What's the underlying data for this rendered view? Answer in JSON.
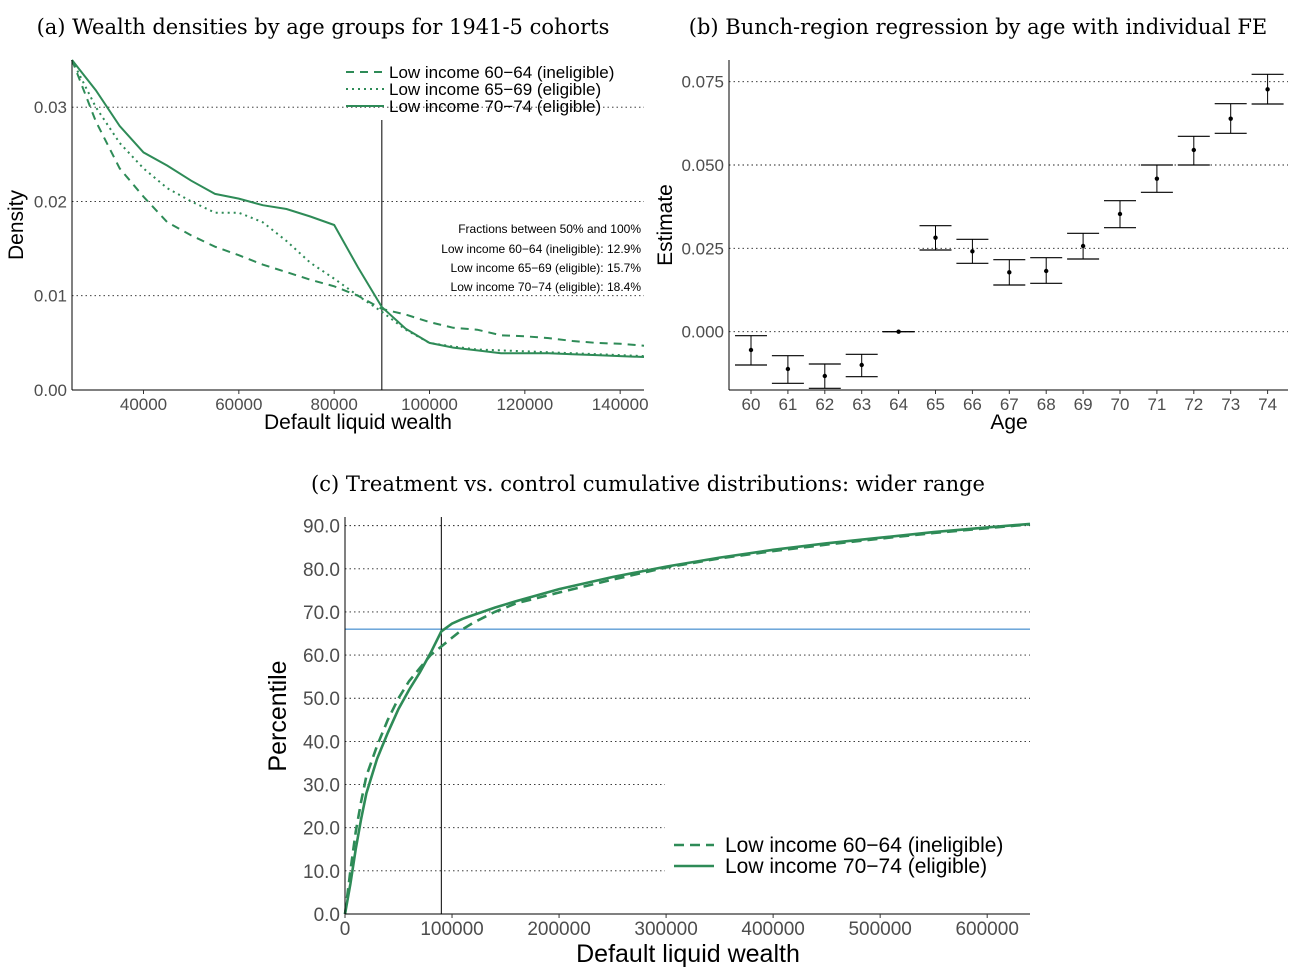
{
  "colors": {
    "green": "#2e8b57",
    "blue": "#5b9bd5",
    "black": "#000000"
  },
  "chart_data": [
    {
      "id": "a",
      "type": "line",
      "title": "(a) Wealth densities by age groups for 1941-5 cohorts",
      "xlabel": "Default liquid wealth",
      "ylabel": "Density",
      "xlim": [
        25000,
        145000
      ],
      "ylim": [
        0,
        0.035
      ],
      "xticks": [
        40000,
        60000,
        80000,
        100000,
        120000,
        140000
      ],
      "xtick_labels": [
        "40000",
        "60000",
        "80000",
        "100000",
        "120000",
        "140000"
      ],
      "yticks": [
        0,
        0.01,
        0.02,
        0.03
      ],
      "ytick_labels": [
        "0.00",
        "0.01",
        "0.02",
        "0.03"
      ],
      "grid": "horizontal dotted",
      "legend_position": "top-right",
      "vline": 90000,
      "series": [
        {
          "name": "Low income 60−64 (ineligible)",
          "style": "dashed",
          "x": [
            25000,
            30000,
            35000,
            40000,
            45000,
            50000,
            55000,
            60000,
            65000,
            70000,
            75000,
            80000,
            85000,
            90000,
            95000,
            100000,
            105000,
            110000,
            115000,
            120000,
            125000,
            130000,
            135000,
            140000,
            145000
          ],
          "y": [
            0.035,
            0.0285,
            0.0235,
            0.0205,
            0.0178,
            0.0164,
            0.0152,
            0.0143,
            0.0133,
            0.0125,
            0.0117,
            0.011,
            0.01,
            0.0086,
            0.008,
            0.0072,
            0.0066,
            0.0064,
            0.0058,
            0.0057,
            0.0055,
            0.0052,
            0.005,
            0.0049,
            0.0047
          ]
        },
        {
          "name": "Low income 65−69 (eligible)",
          "style": "dotted",
          "x": [
            25000,
            30000,
            35000,
            40000,
            45000,
            50000,
            55000,
            60000,
            65000,
            70000,
            75000,
            80000,
            85000,
            90000,
            95000,
            100000,
            105000,
            110000,
            115000,
            120000,
            125000,
            130000,
            135000,
            140000,
            145000
          ],
          "y": [
            0.035,
            0.03,
            0.0262,
            0.0235,
            0.0214,
            0.02,
            0.0188,
            0.0188,
            0.0178,
            0.0158,
            0.0135,
            0.0118,
            0.01,
            0.0083,
            0.0064,
            0.005,
            0.0046,
            0.0043,
            0.0042,
            0.0041,
            0.004,
            0.0039,
            0.0038,
            0.0037,
            0.0036
          ]
        },
        {
          "name": "Low income 70−74 (eligible)",
          "style": "solid",
          "x": [
            25000,
            30000,
            35000,
            40000,
            45000,
            50000,
            55000,
            60000,
            65000,
            70000,
            75000,
            80000,
            85000,
            90000,
            95000,
            100000,
            105000,
            110000,
            115000,
            120000,
            125000,
            130000,
            135000,
            140000,
            145000
          ],
          "y": [
            0.0352,
            0.0318,
            0.028,
            0.0252,
            0.0238,
            0.0222,
            0.0208,
            0.0203,
            0.0196,
            0.0192,
            0.0184,
            0.0175,
            0.013,
            0.0088,
            0.0065,
            0.005,
            0.0045,
            0.0042,
            0.0039,
            0.0039,
            0.0039,
            0.0038,
            0.0037,
            0.0036,
            0.0035
          ]
        }
      ],
      "annotations": [
        "Fractions between 50% and 100%",
        "Low income 60−64 (ineligible): 12.9%",
        "Low income 65−69 (eligible): 15.7%",
        "Low income 70−74 (eligible): 18.4%"
      ]
    },
    {
      "id": "b",
      "type": "scatter",
      "title": "(b) Bunch-region regression by age with individual FE",
      "xlabel": "Age",
      "ylabel": "Estimate",
      "categories": [
        "60",
        "61",
        "62",
        "63",
        "64",
        "65",
        "66",
        "67",
        "68",
        "69",
        "70",
        "71",
        "72",
        "73",
        "74"
      ],
      "ylim": [
        -0.0175,
        0.0815
      ],
      "yticks": [
        0,
        0.025,
        0.05,
        0.075
      ],
      "ytick_labels": [
        "0.000",
        "0.025",
        "0.050",
        "0.075"
      ],
      "grid": "horizontal dotted",
      "estimate": [
        -0.0055,
        -0.0112,
        -0.0133,
        -0.01,
        0.0,
        0.0282,
        0.0241,
        0.0178,
        0.0182,
        0.0257,
        0.0353,
        0.0459,
        0.0545,
        0.0639,
        0.0727
      ],
      "ci_low": [
        -0.01,
        -0.0155,
        -0.017,
        -0.0135,
        0.0,
        0.0245,
        0.0205,
        0.014,
        0.0145,
        0.0218,
        0.0312,
        0.0418,
        0.05,
        0.0595,
        0.0683
      ],
      "ci_high": [
        -0.0012,
        -0.0072,
        -0.0097,
        -0.0068,
        0.0,
        0.0318,
        0.0277,
        0.0216,
        0.0222,
        0.0295,
        0.0393,
        0.05,
        0.0586,
        0.0684,
        0.0772
      ]
    },
    {
      "id": "c",
      "type": "line",
      "title": "(c) Treatment vs. control cumulative distributions: wider range",
      "xlabel": "Default liquid wealth",
      "ylabel": "Percentile",
      "xlim": [
        0,
        640000
      ],
      "ylim": [
        0,
        92
      ],
      "xticks": [
        0,
        100000,
        200000,
        300000,
        400000,
        500000,
        600000
      ],
      "xtick_labels": [
        "0",
        "100000",
        "200000",
        "300000",
        "400000",
        "500000",
        "600000"
      ],
      "yticks": [
        0,
        10,
        20,
        30,
        40,
        50,
        60,
        70,
        80,
        90
      ],
      "ytick_labels": [
        "0.0",
        "10.0",
        "20.0",
        "30.0",
        "40.0",
        "50.0",
        "60.0",
        "70.0",
        "80.0",
        "90.0"
      ],
      "grid": "horizontal dotted",
      "legend_position": "bottom-right",
      "vline": 90000,
      "hline": 66,
      "series": [
        {
          "name": "Low income 60−64 (ineligible)",
          "style": "dashed",
          "x": [
            0,
            5000,
            10000,
            15000,
            20000,
            30000,
            40000,
            50000,
            60000,
            70000,
            80000,
            90000,
            100000,
            110000,
            120000,
            140000,
            160000,
            200000,
            250000,
            300000,
            350000,
            400000,
            450000,
            500000,
            550000,
            600000,
            640000
          ],
          "y": [
            0,
            10,
            19,
            26,
            32,
            39,
            45,
            50,
            54,
            57,
            60,
            62,
            64,
            66,
            67.5,
            70,
            72,
            74.5,
            77.5,
            80.3,
            82.4,
            84.1,
            85.6,
            87,
            88.3,
            89.4,
            90.3
          ]
        },
        {
          "name": "Low income 70−74 (eligible)",
          "style": "solid",
          "x": [
            0,
            5000,
            10000,
            15000,
            20000,
            30000,
            40000,
            50000,
            60000,
            70000,
            80000,
            90000,
            100000,
            110000,
            120000,
            140000,
            160000,
            200000,
            250000,
            300000,
            350000,
            400000,
            450000,
            500000,
            550000,
            600000,
            640000
          ],
          "y": [
            0,
            7,
            15,
            22,
            28,
            36,
            42,
            47.5,
            52,
            56,
            60.5,
            65.5,
            67.3,
            68.4,
            69.3,
            71,
            72.5,
            75.3,
            78.1,
            80.5,
            82.6,
            84.4,
            85.9,
            87.2,
            88.5,
            89.6,
            90.4
          ]
        }
      ]
    }
  ]
}
